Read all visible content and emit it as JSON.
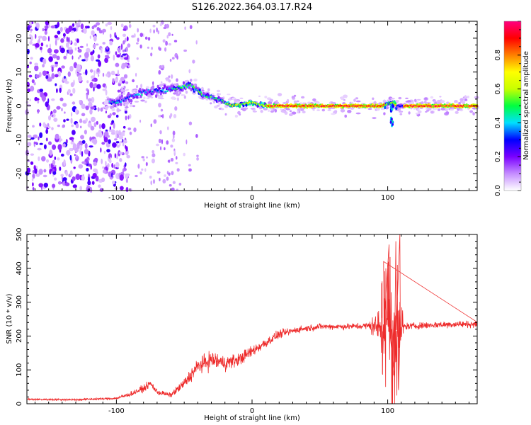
{
  "title": "S126.2022.364.03.17.R24",
  "chart_data": [
    {
      "type": "heatmap",
      "xlabel": "Height of straight line (km)",
      "ylabel": "Frequency (Hz)",
      "xlim": [
        -166,
        166
      ],
      "ylim": [
        -25,
        25
      ],
      "x_ticks": [
        -100,
        0,
        100
      ],
      "y_ticks": [
        -20,
        -10,
        0,
        10,
        20
      ],
      "colorbar": {
        "label": "Normalized spectral amplitude",
        "range": [
          0,
          1
        ],
        "ticks": [
          0.0,
          0.2,
          0.4,
          0.6,
          0.8
        ],
        "colormap": [
          "#ffffff",
          "#c58cff",
          "#7a00ff",
          "#0000ff",
          "#00e0ff",
          "#00ff40",
          "#c8ff00",
          "#ffff00",
          "#ff8000",
          "#ff0000",
          "#ff0080"
        ]
      },
      "ridge": [
        [
          -100,
          1
        ],
        [
          -80,
          4
        ],
        [
          -60,
          5
        ],
        [
          -45,
          6
        ],
        [
          -35,
          3
        ],
        [
          -25,
          2
        ],
        [
          -15,
          0
        ],
        [
          0,
          1
        ],
        [
          10,
          0
        ],
        [
          30,
          0
        ],
        [
          60,
          0
        ],
        [
          80,
          0
        ],
        [
          95,
          0
        ],
        [
          103,
          1
        ],
        [
          107,
          0
        ],
        [
          130,
          0
        ],
        [
          166,
          0
        ]
      ]
    },
    {
      "type": "line",
      "xlabel": "Height of straight line (km)",
      "ylabel": "SNR (10 * v/v)",
      "xlim": [
        -166,
        166
      ],
      "ylim": [
        0,
        500
      ],
      "x_ticks": [
        -100,
        0,
        100
      ],
      "y_ticks": [
        0,
        100,
        200,
        300,
        400,
        500
      ],
      "color": "#ee2c2c",
      "trend": [
        [
          -166,
          13
        ],
        [
          -130,
          12
        ],
        [
          -100,
          16
        ],
        [
          -90,
          28
        ],
        [
          -80,
          45
        ],
        [
          -75,
          60
        ],
        [
          -70,
          35
        ],
        [
          -60,
          25
        ],
        [
          -50,
          60
        ],
        [
          -40,
          110
        ],
        [
          -30,
          130
        ],
        [
          -20,
          120
        ],
        [
          -10,
          130
        ],
        [
          0,
          155
        ],
        [
          10,
          180
        ],
        [
          20,
          205
        ],
        [
          35,
          220
        ],
        [
          50,
          228
        ],
        [
          70,
          228
        ],
        [
          85,
          230
        ],
        [
          95,
          228
        ],
        [
          100,
          222
        ],
        [
          105,
          215
        ],
        [
          110,
          228
        ],
        [
          130,
          232
        ],
        [
          150,
          235
        ],
        [
          166,
          235
        ]
      ],
      "noise": [
        [
          -166,
          4
        ],
        [
          -100,
          5
        ],
        [
          -80,
          15
        ],
        [
          -60,
          10
        ],
        [
          -45,
          30
        ],
        [
          -30,
          40
        ],
        [
          -15,
          30
        ],
        [
          0,
          25
        ],
        [
          30,
          15
        ],
        [
          60,
          12
        ],
        [
          85,
          15
        ],
        [
          92,
          60
        ],
        [
          98,
          140
        ],
        [
          104,
          200
        ],
        [
          110,
          120
        ],
        [
          112,
          15
        ],
        [
          166,
          15
        ]
      ],
      "spikes": [
        [
          97,
          420
        ],
        [
          101,
          470
        ],
        [
          105,
          80
        ],
        [
          106,
          480
        ],
        [
          109,
          500
        ],
        [
          108,
          40
        ]
      ]
    }
  ]
}
